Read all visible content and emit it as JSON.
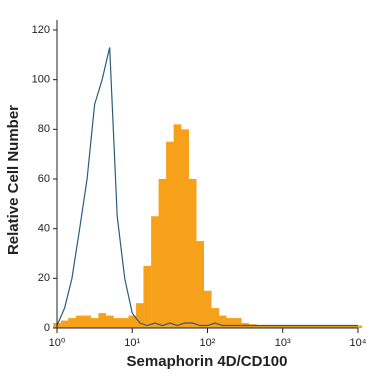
{
  "chart_data": {
    "type": "histogram",
    "xlabel": "Semaphorin 4D/CD100",
    "ylabel": "Relative Cell Number",
    "xscale": "log",
    "x": [
      1,
      1.26,
      1.58,
      2,
      2.51,
      3.16,
      3.98,
      5.01,
      6.31,
      7.94,
      10,
      12.6,
      15.8,
      20,
      25.1,
      31.6,
      39.8,
      50.1,
      63.1,
      79.4,
      100,
      126,
      158,
      200,
      251,
      316,
      398,
      501,
      631,
      794,
      1000,
      1260,
      1580,
      2000,
      2510,
      3160,
      3980,
      5010,
      6310,
      7940,
      10000
    ],
    "series": [
      {
        "color": "#f7a11a",
        "style": "filled",
        "values": [
          2,
          3,
          4,
          5,
          5,
          4,
          6,
          5,
          4,
          4,
          5,
          10,
          25,
          45,
          60,
          75,
          82,
          80,
          60,
          35,
          15,
          8,
          5,
          4,
          4,
          2,
          1.5,
          1,
          1,
          1,
          1,
          1,
          1,
          1,
          1,
          1,
          1,
          1,
          1,
          1,
          1
        ]
      },
      {
        "color": "#2a5d7c",
        "style": "outline",
        "values": [
          1,
          8,
          20,
          40,
          60,
          90,
          100,
          113,
          45,
          20,
          6,
          2,
          1,
          2,
          1,
          2,
          1,
          2,
          2,
          1,
          1,
          2,
          1,
          1,
          1,
          1,
          1,
          1,
          1,
          1,
          1,
          1,
          1,
          1,
          1,
          1,
          1,
          1,
          1,
          1,
          1
        ]
      }
    ],
    "xlim": [
      1,
      10000
    ],
    "xticks": [
      {
        "value": 1,
        "label": "10⁰"
      },
      {
        "value": 10,
        "label": "10¹"
      },
      {
        "value": 100,
        "label": "10²"
      },
      {
        "value": 1000,
        "label": "10³"
      },
      {
        "value": 10000,
        "label": "10⁴"
      }
    ],
    "ylim": [
      0,
      120
    ],
    "yticks": [
      0,
      20,
      40,
      60,
      80,
      100,
      120
    ]
  }
}
